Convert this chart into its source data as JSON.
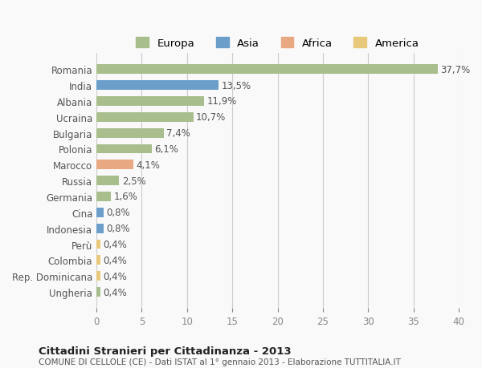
{
  "countries": [
    "Romania",
    "India",
    "Albania",
    "Ucraina",
    "Bulgaria",
    "Polonia",
    "Marocco",
    "Russia",
    "Germania",
    "Cina",
    "Indonesia",
    "Perù",
    "Colombia",
    "Rep. Dominicana",
    "Ungheria"
  ],
  "values": [
    37.7,
    13.5,
    11.9,
    10.7,
    7.4,
    6.1,
    4.1,
    2.5,
    1.6,
    0.8,
    0.8,
    0.4,
    0.4,
    0.4,
    0.4
  ],
  "labels": [
    "37,7%",
    "13,5%",
    "11,9%",
    "10,7%",
    "7,4%",
    "6,1%",
    "4,1%",
    "2,5%",
    "1,6%",
    "0,8%",
    "0,8%",
    "0,4%",
    "0,4%",
    "0,4%",
    "0,4%"
  ],
  "continents": [
    "Europa",
    "Asia",
    "Europa",
    "Europa",
    "Europa",
    "Europa",
    "Africa",
    "Europa",
    "Europa",
    "Asia",
    "Asia",
    "America",
    "America",
    "America",
    "Europa"
  ],
  "continent_colors": {
    "Europa": "#a8be8c",
    "Asia": "#6b9fc9",
    "Africa": "#e8a882",
    "America": "#e8c87a"
  },
  "legend_order": [
    "Europa",
    "Asia",
    "Africa",
    "America"
  ],
  "title": "Cittadini Stranieri per Cittadinanza - 2013",
  "subtitle": "COMUNE DI CELLOLE (CE) - Dati ISTAT al 1° gennaio 2013 - Elaborazione TUTTITALIA.IT",
  "xlim": [
    0,
    40
  ],
  "xticks": [
    0,
    5,
    10,
    15,
    20,
    25,
    30,
    35,
    40
  ],
  "background_color": "#f9f9f9",
  "grid_color": "#cccccc",
  "bar_height": 0.6,
  "label_fontsize": 8.5,
  "tick_fontsize": 8.5
}
